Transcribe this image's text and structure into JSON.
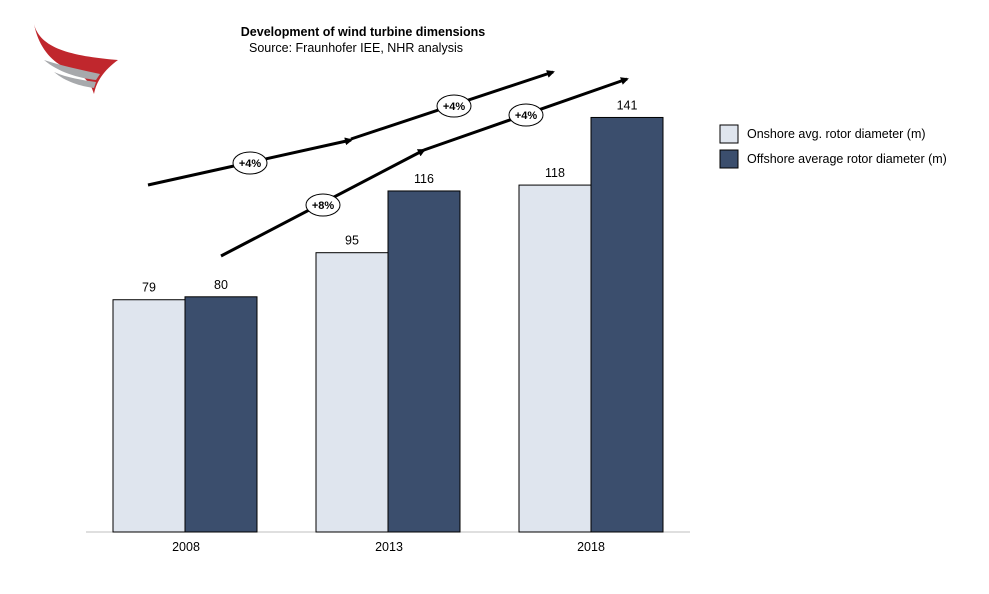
{
  "chart_data": {
    "type": "bar",
    "title": "Development of wind turbine dimensions",
    "subtitle": "Source: Fraunhofer IEE, NHR analysis",
    "categories": [
      "2008",
      "2013",
      "2018"
    ],
    "series": [
      {
        "name": "Onshore avg. rotor diameter (m)",
        "values": [
          79,
          95,
          118
        ],
        "color": "#dfe5ee"
      },
      {
        "name": "Offshore average rotor diameter (m)",
        "values": [
          80,
          116,
          141
        ],
        "color": "#3b4e6d"
      }
    ],
    "ylim": [
      0,
      141
    ],
    "grid": false,
    "legend": "right",
    "growth_annotations": {
      "onshore": [
        "+4%",
        "+4%"
      ],
      "offshore": [
        "+8%",
        "+4%"
      ]
    }
  },
  "logo": {
    "name": "wing-logo-icon",
    "colors": [
      "#c0272d",
      "#a7a9ac"
    ]
  }
}
